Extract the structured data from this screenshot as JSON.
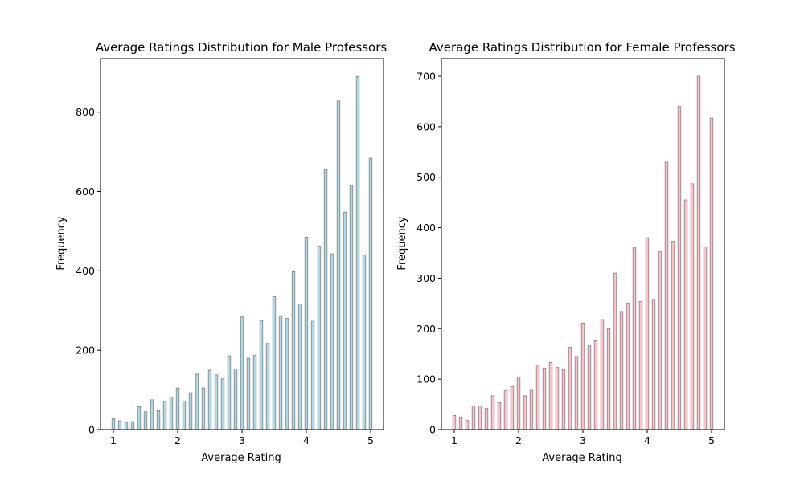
{
  "chart_data": [
    {
      "type": "bar",
      "title": "Average Ratings Distribution for Male Professors",
      "xlabel": "Average Rating",
      "ylabel": "Frequency",
      "xlim": [
        0.8,
        5.2
      ],
      "ylim": [
        0,
        935
      ],
      "xticks": [
        "1",
        "2",
        "3",
        "4",
        "5"
      ],
      "yticks": [
        "0",
        "200",
        "400",
        "600",
        "800"
      ],
      "bar_color": "#add8e6",
      "edge_color": "#808080",
      "x": [
        1.0,
        1.1,
        1.2,
        1.3,
        1.4,
        1.5,
        1.6,
        1.7,
        1.8,
        1.9,
        2.0,
        2.1,
        2.2,
        2.3,
        2.4,
        2.5,
        2.6,
        2.7,
        2.8,
        2.9,
        3.0,
        3.1,
        3.2,
        3.3,
        3.4,
        3.5,
        3.6,
        3.7,
        3.8,
        3.9,
        4.0,
        4.1,
        4.2,
        4.3,
        4.4,
        4.5,
        4.6,
        4.7,
        4.8,
        4.9,
        5.0
      ],
      "values": [
        27,
        22,
        18,
        20,
        58,
        45,
        75,
        48,
        71,
        82,
        105,
        72,
        93,
        140,
        105,
        150,
        138,
        128,
        186,
        153,
        284,
        180,
        187,
        275,
        217,
        335,
        287,
        280,
        398,
        317,
        485,
        273,
        462,
        655,
        443,
        828,
        548,
        615,
        890,
        440,
        684
      ]
    },
    {
      "type": "bar",
      "title": "Average Ratings Distribution for Female Professors",
      "xlabel": "Average Rating",
      "ylabel": "Frequency",
      "xlim": [
        0.8,
        5.2
      ],
      "ylim": [
        0,
        735
      ],
      "xticks": [
        "1",
        "2",
        "3",
        "4",
        "5"
      ],
      "yticks": [
        "0",
        "100",
        "200",
        "300",
        "400",
        "500",
        "600",
        "700"
      ],
      "bar_color": "#ffc0cb",
      "edge_color": "#808080",
      "x": [
        1.0,
        1.1,
        1.2,
        1.3,
        1.4,
        1.5,
        1.6,
        1.7,
        1.8,
        1.9,
        2.0,
        2.1,
        2.2,
        2.3,
        2.4,
        2.5,
        2.6,
        2.7,
        2.8,
        2.9,
        3.0,
        3.1,
        3.2,
        3.3,
        3.4,
        3.5,
        3.6,
        3.7,
        3.8,
        3.9,
        4.0,
        4.1,
        4.2,
        4.3,
        4.4,
        4.5,
        4.6,
        4.7,
        4.8,
        4.9,
        5.0
      ],
      "values": [
        28,
        25,
        18,
        47,
        47,
        42,
        67,
        53,
        77,
        85,
        104,
        67,
        78,
        128,
        122,
        133,
        123,
        119,
        163,
        145,
        211,
        166,
        176,
        218,
        200,
        310,
        234,
        251,
        360,
        254,
        380,
        258,
        353,
        530,
        373,
        640,
        455,
        487,
        700,
        362,
        617
      ]
    }
  ]
}
